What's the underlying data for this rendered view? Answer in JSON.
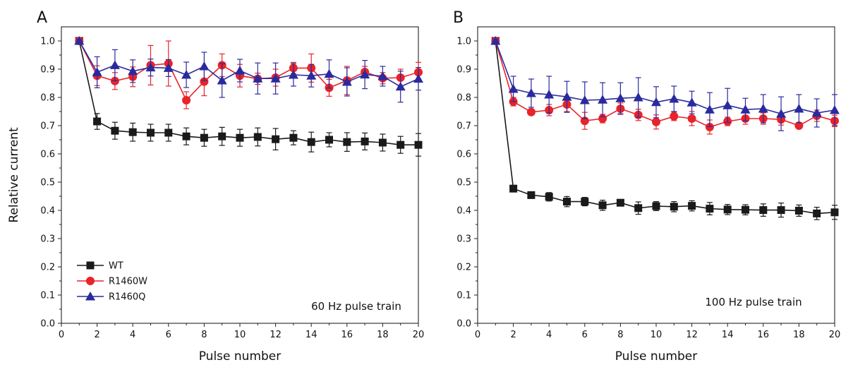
{
  "chart_data": [
    {
      "type": "line",
      "panel_label": "A",
      "annotation": "60 Hz pulse train",
      "xlabel": "Pulse number",
      "ylabel": "Relative current",
      "xlim": [
        0,
        20
      ],
      "ylim": [
        0.0,
        1.05
      ],
      "xticks": [
        0,
        2,
        4,
        6,
        8,
        10,
        12,
        14,
        16,
        18,
        20
      ],
      "yticks": [
        0.0,
        0.1,
        0.2,
        0.3,
        0.4,
        0.5,
        0.6,
        0.7,
        0.8,
        0.9,
        1.0
      ],
      "xtick_labels": [
        "0",
        "2",
        "4",
        "6",
        "8",
        "10",
        "12",
        "14",
        "16",
        "18",
        "20"
      ],
      "ytick_labels": [
        "0.0",
        "0.1",
        "0.2",
        "0.3",
        "0.4",
        "0.5",
        "0.6",
        "0.7",
        "0.8",
        "0.9",
        "1.0"
      ],
      "legend": "bottom-left",
      "grid": false,
      "x": [
        1,
        2,
        3,
        4,
        5,
        6,
        7,
        8,
        9,
        10,
        11,
        12,
        13,
        14,
        15,
        16,
        17,
        18,
        19,
        20
      ],
      "series": [
        {
          "name": "WT",
          "color": "#1a1a1a",
          "marker": "square",
          "values": [
            1.0,
            0.715,
            0.682,
            0.677,
            0.675,
            0.675,
            0.662,
            0.657,
            0.662,
            0.657,
            0.66,
            0.652,
            0.657,
            0.642,
            0.65,
            0.642,
            0.644,
            0.64,
            0.632,
            0.632
          ],
          "errors": [
            0.005,
            0.028,
            0.03,
            0.032,
            0.03,
            0.03,
            0.03,
            0.03,
            0.032,
            0.03,
            0.032,
            0.038,
            0.025,
            0.035,
            0.025,
            0.033,
            0.03,
            0.03,
            0.03,
            0.04
          ]
        },
        {
          "name": "R1460W",
          "color": "#e8232a",
          "marker": "circle",
          "values": [
            1.0,
            0.877,
            0.858,
            0.873,
            0.914,
            0.92,
            0.79,
            0.856,
            0.914,
            0.877,
            0.866,
            0.87,
            0.904,
            0.904,
            0.834,
            0.86,
            0.89,
            0.868,
            0.87,
            0.889
          ],
          "errors": [
            0.005,
            0.035,
            0.03,
            0.035,
            0.07,
            0.08,
            0.03,
            0.05,
            0.04,
            0.04,
            0.02,
            0.03,
            0.02,
            0.05,
            0.03,
            0.05,
            0.02,
            0.02,
            0.03,
            0.035
          ]
        },
        {
          "name": "R1460Q",
          "color": "#2a2a9e",
          "marker": "triangle",
          "values": [
            1.0,
            0.889,
            0.914,
            0.893,
            0.906,
            0.904,
            0.88,
            0.91,
            0.86,
            0.895,
            0.867,
            0.867,
            0.88,
            0.877,
            0.883,
            0.855,
            0.881,
            0.875,
            0.838,
            0.866
          ],
          "errors": [
            0.005,
            0.055,
            0.055,
            0.04,
            0.03,
            0.03,
            0.045,
            0.05,
            0.06,
            0.04,
            0.055,
            0.055,
            0.04,
            0.04,
            0.05,
            0.05,
            0.05,
            0.035,
            0.055,
            0.04
          ]
        }
      ]
    },
    {
      "type": "line",
      "panel_label": "B",
      "annotation": "100 Hz pulse train",
      "xlabel": "Pulse number",
      "ylabel": "",
      "xlim": [
        0,
        20
      ],
      "ylim": [
        0.0,
        1.05
      ],
      "xticks": [
        0,
        2,
        4,
        6,
        8,
        10,
        12,
        14,
        16,
        18,
        20
      ],
      "yticks": [
        0.0,
        0.1,
        0.2,
        0.3,
        0.4,
        0.5,
        0.6,
        0.7,
        0.8,
        0.9,
        1.0
      ],
      "xtick_labels": [
        "0",
        "2",
        "4",
        "6",
        "8",
        "10",
        "12",
        "14",
        "16",
        "18",
        "20"
      ],
      "ytick_labels": [
        "0.0",
        "0.1",
        "0.2",
        "0.3",
        "0.4",
        "0.5",
        "0.6",
        "0.7",
        "0.8",
        "0.9",
        "1.0"
      ],
      "legend": "none",
      "grid": false,
      "x": [
        1,
        2,
        3,
        4,
        5,
        6,
        7,
        8,
        9,
        10,
        11,
        12,
        13,
        14,
        15,
        16,
        17,
        18,
        19,
        20
      ],
      "series": [
        {
          "name": "WT",
          "color": "#1a1a1a",
          "marker": "square",
          "values": [
            1.0,
            0.477,
            0.454,
            0.448,
            0.431,
            0.431,
            0.418,
            0.427,
            0.408,
            0.415,
            0.413,
            0.416,
            0.406,
            0.403,
            0.402,
            0.401,
            0.401,
            0.399,
            0.389,
            0.393
          ],
          "errors": [
            0.005,
            0.01,
            0.01,
            0.015,
            0.018,
            0.015,
            0.018,
            0.01,
            0.022,
            0.016,
            0.018,
            0.018,
            0.022,
            0.018,
            0.018,
            0.022,
            0.025,
            0.02,
            0.022,
            0.025
          ]
        },
        {
          "name": "R1460W",
          "color": "#e8232a",
          "marker": "circle",
          "values": [
            1.0,
            0.785,
            0.748,
            0.755,
            0.775,
            0.717,
            0.725,
            0.76,
            0.738,
            0.713,
            0.733,
            0.725,
            0.695,
            0.715,
            0.725,
            0.725,
            0.722,
            0.7,
            0.735,
            0.717
          ],
          "errors": [
            0.005,
            0.015,
            0.01,
            0.02,
            0.025,
            0.03,
            0.015,
            0.02,
            0.02,
            0.025,
            0.015,
            0.025,
            0.025,
            0.015,
            0.02,
            0.02,
            0.02,
            0.01,
            0.02,
            0.02
          ]
        },
        {
          "name": "R1460Q",
          "color": "#2a2a9e",
          "marker": "triangle",
          "values": [
            1.0,
            0.83,
            0.815,
            0.81,
            0.802,
            0.79,
            0.792,
            0.797,
            0.8,
            0.783,
            0.795,
            0.782,
            0.757,
            0.772,
            0.757,
            0.76,
            0.742,
            0.76,
            0.745,
            0.755
          ],
          "errors": [
            0.005,
            0.045,
            0.05,
            0.065,
            0.055,
            0.065,
            0.06,
            0.055,
            0.07,
            0.055,
            0.045,
            0.04,
            0.06,
            0.06,
            0.04,
            0.05,
            0.06,
            0.05,
            0.05,
            0.055
          ]
        }
      ]
    }
  ]
}
